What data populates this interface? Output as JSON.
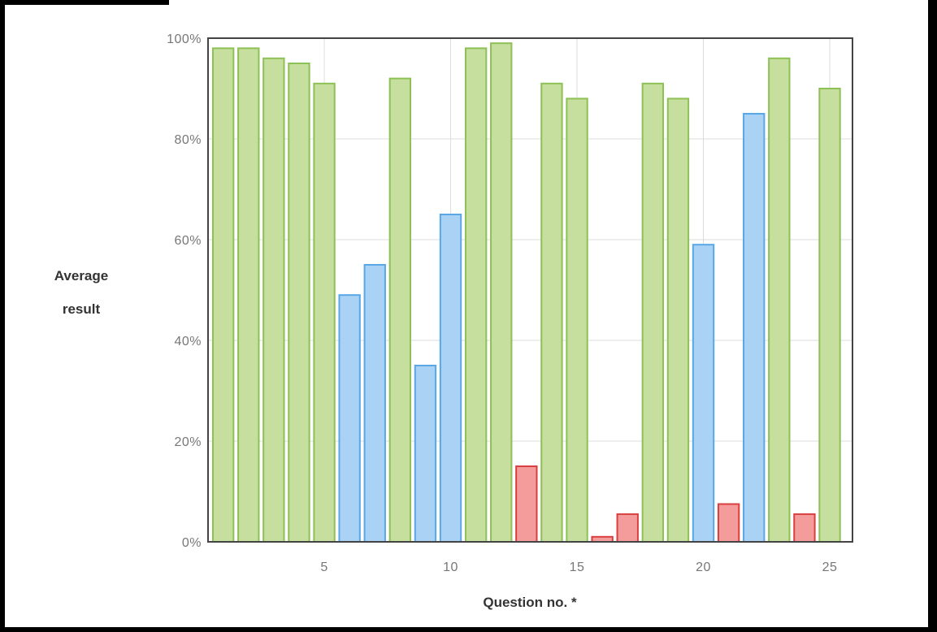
{
  "chart_data": {
    "type": "bar",
    "xlabel": "Question no. *",
    "ylabel_lines": [
      "Average",
      "result"
    ],
    "ylim": [
      0,
      100
    ],
    "yticks": [
      0,
      20,
      40,
      60,
      80,
      100
    ],
    "ytick_suffix": "%",
    "xticks": [
      5,
      10,
      15,
      20,
      25
    ],
    "grid": true,
    "colors": {
      "green": {
        "fill": "#c6df9f",
        "stroke": "#8dc055"
      },
      "blue": {
        "fill": "#a9d2f5",
        "stroke": "#5aa7e6"
      },
      "red": {
        "fill": "#f49b9b",
        "stroke": "#d93f3f"
      }
    },
    "bars": [
      {
        "q": 1,
        "value": 98,
        "color": "green"
      },
      {
        "q": 2,
        "value": 98,
        "color": "green"
      },
      {
        "q": 3,
        "value": 96,
        "color": "green"
      },
      {
        "q": 4,
        "value": 95,
        "color": "green"
      },
      {
        "q": 5,
        "value": 91,
        "color": "green"
      },
      {
        "q": 6,
        "value": 49,
        "color": "blue"
      },
      {
        "q": 7,
        "value": 55,
        "color": "blue"
      },
      {
        "q": 8,
        "value": 92,
        "color": "green"
      },
      {
        "q": 9,
        "value": 35,
        "color": "blue"
      },
      {
        "q": 10,
        "value": 65,
        "color": "blue"
      },
      {
        "q": 11,
        "value": 98,
        "color": "green"
      },
      {
        "q": 12,
        "value": 99,
        "color": "green"
      },
      {
        "q": 13,
        "value": 15,
        "color": "red"
      },
      {
        "q": 14,
        "value": 91,
        "color": "green"
      },
      {
        "q": 15,
        "value": 88,
        "color": "green"
      },
      {
        "q": 16,
        "value": 1,
        "color": "red"
      },
      {
        "q": 17,
        "value": 5.5,
        "color": "red"
      },
      {
        "q": 18,
        "value": 91,
        "color": "green"
      },
      {
        "q": 19,
        "value": 88,
        "color": "green"
      },
      {
        "q": 20,
        "value": 59,
        "color": "blue"
      },
      {
        "q": 21,
        "value": 7.5,
        "color": "red"
      },
      {
        "q": 22,
        "value": 85,
        "color": "blue"
      },
      {
        "q": 23,
        "value": 96,
        "color": "green"
      },
      {
        "q": 24,
        "value": 5.5,
        "color": "red"
      },
      {
        "q": 25,
        "value": 90,
        "color": "green"
      }
    ]
  }
}
